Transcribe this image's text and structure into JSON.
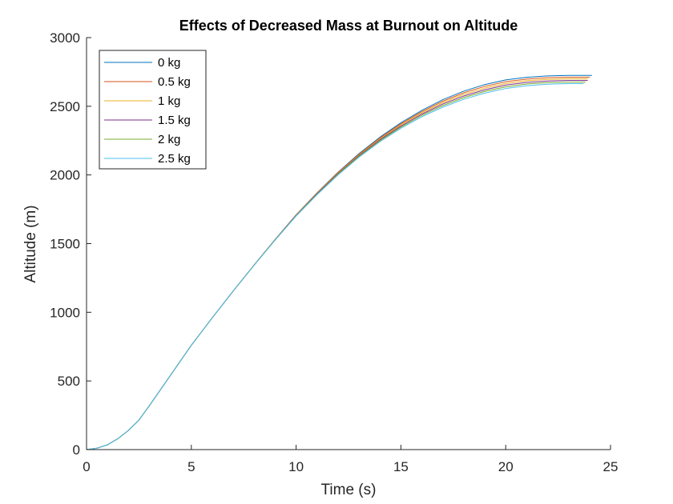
{
  "chart_data": {
    "type": "line",
    "title": "Effects of Decreased Mass at Burnout on Altitude",
    "xlabel": "Time (s)",
    "ylabel": "Altitude (m)",
    "xlim": [
      0,
      25
    ],
    "ylim": [
      0,
      3000
    ],
    "xticks": [
      "0",
      "5",
      "10",
      "15",
      "20",
      "25"
    ],
    "yticks": [
      "0",
      "500",
      "1000",
      "1500",
      "2000",
      "2500",
      "3000"
    ],
    "grid": false,
    "legend_position": "top-left",
    "x": [
      0,
      0.5,
      1,
      1.5,
      2,
      2.5,
      3,
      4,
      5,
      6,
      7,
      8,
      9,
      10,
      11,
      12,
      13,
      14,
      15,
      16,
      17,
      18,
      19,
      20,
      21,
      22,
      23,
      23.7
    ],
    "series": [
      {
        "name": "0 kg",
        "color": "#0072BD",
        "end": [
          24.1,
          2725
        ],
        "values": [
          0,
          10,
          35,
          80,
          140,
          215,
          320,
          540,
          760,
          960,
          1155,
          1345,
          1530,
          1710,
          1870,
          2020,
          2155,
          2275,
          2380,
          2470,
          2548,
          2610,
          2658,
          2692,
          2711,
          2721,
          2725,
          2725
        ]
      },
      {
        "name": "0.5 kg",
        "color": "#D95319",
        "end": [
          24.0,
          2712
        ],
        "values": [
          0,
          10,
          35,
          80,
          140,
          215,
          320,
          540,
          760,
          960,
          1155,
          1345,
          1530,
          1709,
          1868,
          2017,
          2150,
          2269,
          2372,
          2461,
          2537,
          2598,
          2645,
          2679,
          2698,
          2708,
          2712,
          2712
        ]
      },
      {
        "name": "1 kg",
        "color": "#EDB120",
        "end": [
          23.9,
          2700
        ],
        "values": [
          0,
          10,
          35,
          80,
          140,
          215,
          320,
          540,
          760,
          960,
          1155,
          1345,
          1529,
          1707,
          1865,
          2013,
          2145,
          2262,
          2364,
          2452,
          2526,
          2586,
          2632,
          2666,
          2686,
          2696,
          2700,
          2700
        ]
      },
      {
        "name": "1.5 kg",
        "color": "#7E2F8E",
        "end": [
          23.9,
          2688
        ],
        "values": [
          0,
          10,
          35,
          80,
          140,
          215,
          320,
          540,
          760,
          960,
          1155,
          1344,
          1528,
          1705,
          1862,
          2009,
          2140,
          2256,
          2356,
          2443,
          2516,
          2575,
          2620,
          2654,
          2674,
          2684,
          2688,
          2688
        ]
      },
      {
        "name": "2 kg",
        "color": "#77AC30",
        "end": [
          23.8,
          2676
        ],
        "values": [
          0,
          10,
          35,
          80,
          140,
          215,
          320,
          540,
          760,
          960,
          1155,
          1344,
          1527,
          1703,
          1859,
          2005,
          2135,
          2249,
          2348,
          2434,
          2505,
          2563,
          2608,
          2641,
          2662,
          2672,
          2676,
          2676
        ]
      },
      {
        "name": "2.5 kg",
        "color": "#4DBEEE",
        "end": [
          23.7,
          2665
        ],
        "values": [
          0,
          10,
          35,
          80,
          140,
          215,
          320,
          540,
          760,
          960,
          1155,
          1343,
          1526,
          1701,
          1856,
          2000,
          2129,
          2242,
          2340,
          2424,
          2494,
          2551,
          2596,
          2629,
          2650,
          2661,
          2665,
          2665
        ]
      }
    ]
  }
}
